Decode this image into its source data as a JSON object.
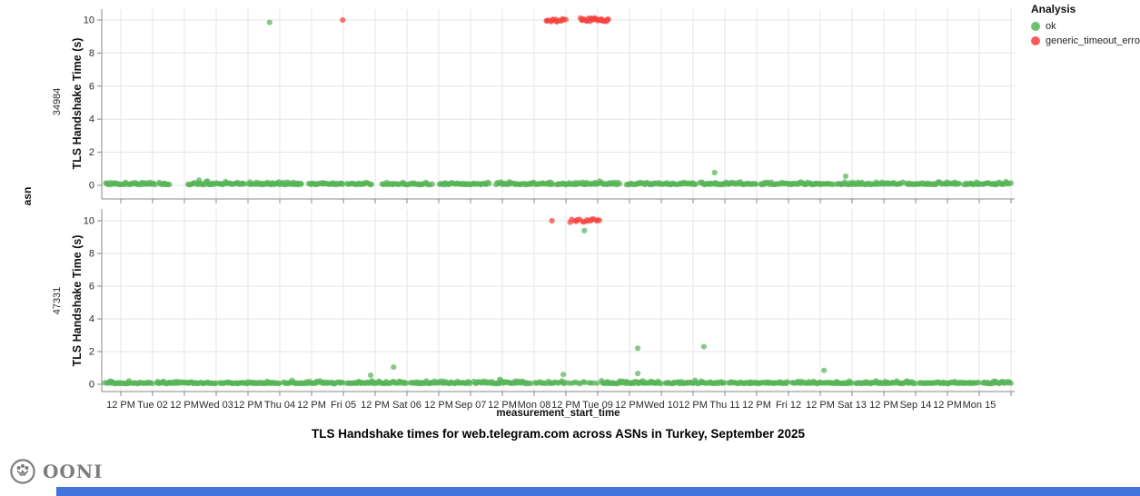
{
  "title": "TLS Handshake times for web.telegram.com across ASNs in Turkey, September 2025",
  "legend": {
    "title": "Analysis",
    "items": [
      {
        "label": "ok",
        "color": "#57b457"
      },
      {
        "label": "generic_timeout_error",
        "color": "#f4413d"
      }
    ]
  },
  "footer": {
    "brand": "OONI",
    "logo_color": "#7d7d7d",
    "scrollbar_color": "#4273df"
  },
  "chart_data": {
    "type": "scatter",
    "title": "TLS Handshake times for web.telegram.com across ASNs in Turkey, September 2025",
    "xlabel": "measurement_start_time",
    "ylabel": "TLS Handshake Time (s)",
    "facet_label": "asn",
    "x_unit": "days since Sep 01 2025 00:00",
    "x_ticks_days": [
      0.5,
      1,
      1.5,
      2,
      2.5,
      3,
      3.5,
      4,
      4.5,
      5,
      5.5,
      6,
      6.5,
      7,
      7.5,
      8,
      8.5,
      9,
      9.5,
      10,
      10.5,
      11,
      11.5,
      12,
      12.5,
      13,
      13.5,
      14,
      14.5
    ],
    "x_tick_labels": [
      "12 PM",
      "Tue 02",
      "12 PM",
      "Wed 03",
      "12 PM",
      "Thu 04",
      "12 PM",
      "Fri 05",
      "12 PM",
      "Sat 06",
      "12 PM",
      "Sep 07",
      "12 PM",
      "Mon 08",
      "12 PM",
      "Tue 09",
      "12 PM",
      "Wed 10",
      "12 PM",
      "Thu 11",
      "12 PM",
      "Fri 12",
      "12 PM",
      "Sat 13",
      "12 PM",
      "Sep 14",
      "12 PM",
      "Mon 15",
      ""
    ],
    "ylim": [
      0,
      10.7
    ],
    "y_ticks": [
      0,
      2,
      4,
      6,
      8,
      10
    ],
    "grid": true,
    "legend_position": "top-right",
    "point_opacity": 0.72,
    "colors": {
      "ok": "#57b457",
      "generic_timeout_error": "#f4413d",
      "grid": "#e4e4e4",
      "axis": "#888888",
      "text": "#2b2b2b"
    },
    "baseline_note": "ok measurements hug 0.05-0.25 s",
    "facets": [
      {
        "asn": "34984",
        "ok_segments": [
          [
            0.25,
            1.05,
            45
          ],
          [
            1.1,
            1.27,
            10
          ],
          [
            1.55,
            2.45,
            50
          ],
          [
            2.5,
            3.35,
            55
          ],
          [
            3.45,
            4.0,
            35
          ],
          [
            4.05,
            4.45,
            22
          ],
          [
            4.6,
            5.4,
            40
          ],
          [
            5.5,
            6.3,
            45
          ],
          [
            6.4,
            7.3,
            50
          ],
          [
            7.35,
            8.35,
            55
          ],
          [
            8.45,
            9.55,
            60
          ],
          [
            9.6,
            10.5,
            50
          ],
          [
            10.55,
            11.7,
            60
          ],
          [
            11.75,
            12.8,
            55
          ],
          [
            12.85,
            13.7,
            50
          ],
          [
            13.75,
            14.5,
            40
          ]
        ],
        "ok_outliers": [
          [
            2.84,
            9.85
          ],
          [
            9.84,
            0.77
          ],
          [
            11.9,
            0.55
          ]
        ],
        "error_clusters": [
          [
            7.18,
            7.5,
            14
          ],
          [
            7.72,
            8.18,
            26
          ]
        ],
        "error_points": [
          [
            3.99,
            10.0
          ]
        ]
      },
      {
        "asn": "47331",
        "ok_segments": [
          [
            0.25,
            1.0,
            42
          ],
          [
            1.05,
            2.0,
            55
          ],
          [
            2.05,
            3.0,
            55
          ],
          [
            3.05,
            4.0,
            50
          ],
          [
            4.05,
            5.0,
            52
          ],
          [
            5.05,
            6.0,
            52
          ],
          [
            6.05,
            6.95,
            50
          ],
          [
            7.0,
            7.5,
            20
          ],
          [
            7.5,
            8.0,
            12
          ],
          [
            8.05,
            9.0,
            55
          ],
          [
            9.05,
            10.0,
            52
          ],
          [
            10.05,
            11.0,
            52
          ],
          [
            11.05,
            12.0,
            52
          ],
          [
            12.05,
            13.0,
            52
          ],
          [
            13.05,
            14.0,
            52
          ],
          [
            14.05,
            14.5,
            26
          ]
        ],
        "ok_outliers": [
          [
            7.79,
            9.4
          ],
          [
            4.43,
            0.55
          ],
          [
            4.79,
            1.05
          ],
          [
            6.46,
            0.3
          ],
          [
            7.46,
            0.6
          ],
          [
            8.63,
            2.2
          ],
          [
            8.63,
            0.66
          ],
          [
            9.67,
            2.3
          ],
          [
            11.56,
            0.85
          ]
        ],
        "error_clusters": [
          [
            7.55,
            8.05,
            16
          ]
        ],
        "error_points": [
          [
            7.28,
            10.0
          ]
        ]
      }
    ]
  }
}
